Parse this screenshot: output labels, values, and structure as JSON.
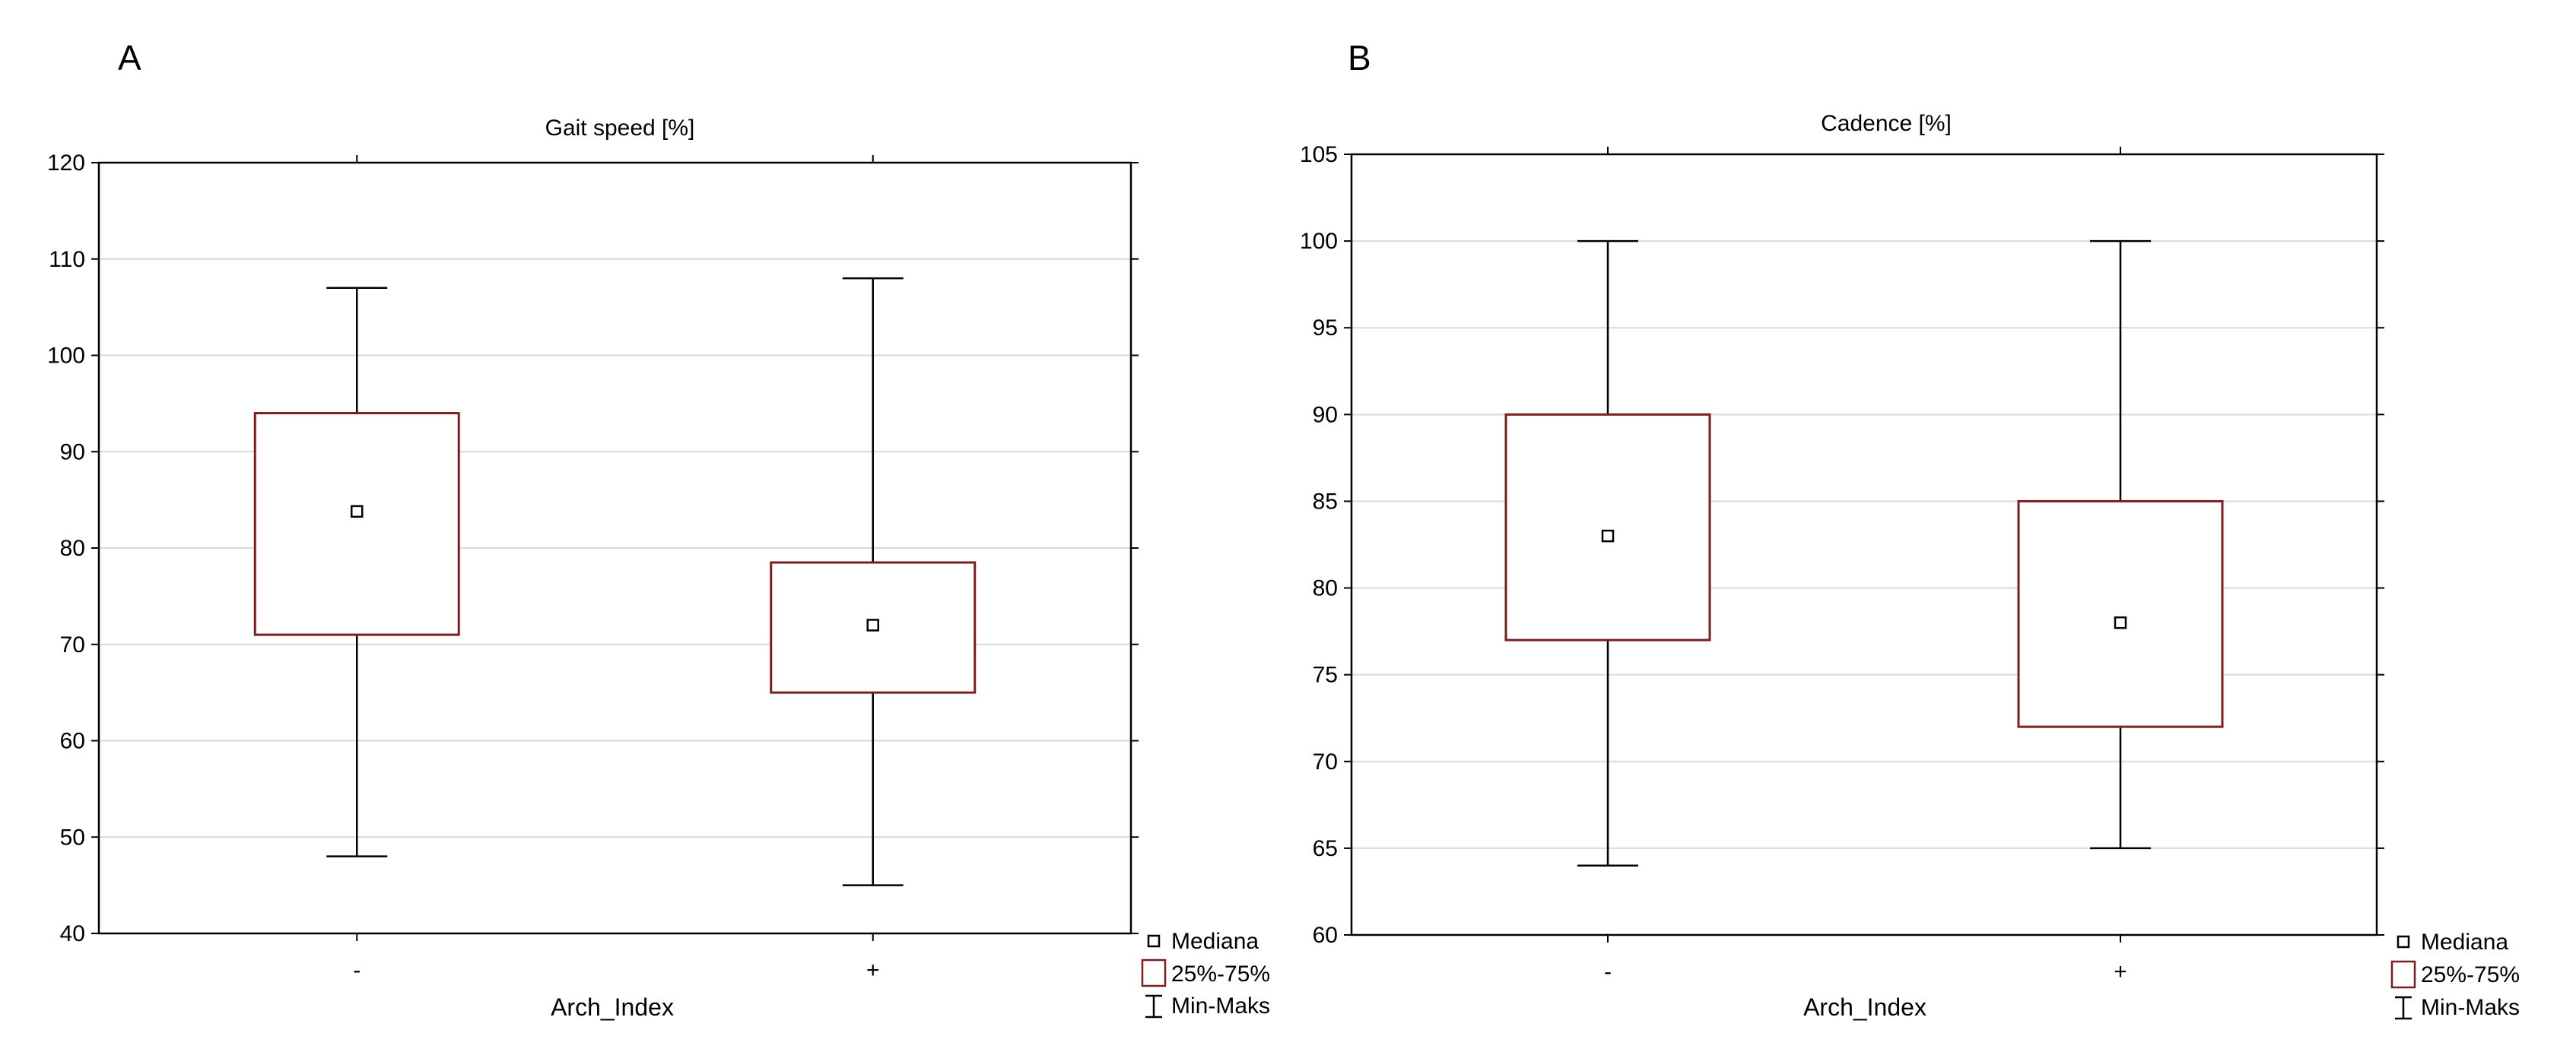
{
  "panels": [
    {
      "letter": "A",
      "chart_data": {
        "type": "box",
        "title": "Gait speed [%]",
        "xlabel": "Arch_Index",
        "ylabel": "",
        "categories": [
          "-",
          "+"
        ],
        "ylim": [
          40,
          120
        ],
        "yticks": [
          40,
          50,
          60,
          70,
          80,
          90,
          100,
          110,
          120
        ],
        "grid": true,
        "boxes": [
          {
            "category": "-",
            "min": 48,
            "q1": 71,
            "median": 83.8,
            "q3": 94,
            "max": 107
          },
          {
            "category": "+",
            "min": 45,
            "q1": 65,
            "median": 72,
            "q3": 78.5,
            "max": 108
          }
        ],
        "legend": {
          "placement": "bottom-right",
          "entries": [
            "Mediana",
            "25%-75%",
            "Min-Maks"
          ]
        }
      }
    },
    {
      "letter": "B",
      "chart_data": {
        "type": "box",
        "title": "Cadence [%]",
        "xlabel": "Arch_Index",
        "ylabel": "",
        "categories": [
          "-",
          "+"
        ],
        "ylim": [
          60,
          105
        ],
        "yticks": [
          60,
          65,
          70,
          75,
          80,
          85,
          90,
          95,
          100,
          105
        ],
        "grid": true,
        "boxes": [
          {
            "category": "-",
            "min": 64,
            "q1": 77,
            "median": 83,
            "q3": 90,
            "max": 100
          },
          {
            "category": "+",
            "min": 65,
            "q1": 72,
            "median": 78,
            "q3": 85,
            "max": 100
          }
        ],
        "legend": {
          "placement": "bottom-right",
          "entries": [
            "Mediana",
            "25%-75%",
            "Min-Maks"
          ]
        }
      }
    }
  ],
  "colors": {
    "box": "#7a1f1f",
    "whisker": "#000000",
    "grid": "#d9d9d9",
    "axis": "#000000"
  }
}
